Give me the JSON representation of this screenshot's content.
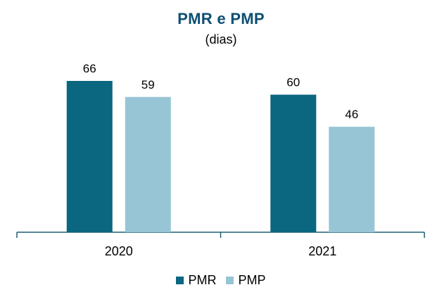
{
  "chart_data": {
    "type": "bar",
    "title": "PMR e PMP",
    "subtitle": "(dias)",
    "categories": [
      "2020",
      "2021"
    ],
    "series": [
      {
        "name": "PMR",
        "values": [
          66,
          60
        ],
        "color": "#0b6680"
      },
      {
        "name": "PMP",
        "values": [
          59,
          46
        ],
        "color": "#97c5d6"
      }
    ],
    "ylim": [
      0,
      66
    ],
    "grid": false,
    "legend_position": "bottom",
    "data_labels": true
  }
}
